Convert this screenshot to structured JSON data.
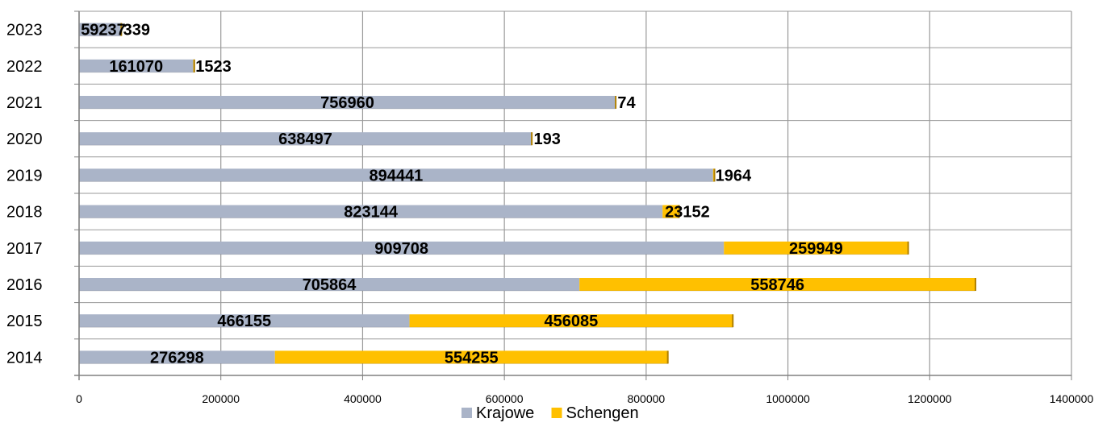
{
  "chart_data": {
    "type": "bar",
    "orientation": "horizontal",
    "stacked": true,
    "categories": [
      "2014",
      "2015",
      "2016",
      "2017",
      "2018",
      "2019",
      "2020",
      "2021",
      "2022",
      "2023"
    ],
    "series": [
      {
        "name": "Krajowe",
        "color": "#AAB4C8",
        "values": [
          276298,
          466155,
          705864,
          909708,
          823144,
          894441,
          638497,
          756960,
          161070,
          59237
        ]
      },
      {
        "name": "Schengen",
        "color": "#FFC000",
        "values": [
          554255,
          456085,
          558746,
          259949,
          23152,
          1964,
          193,
          74,
          1523,
          339
        ]
      }
    ],
    "xlim": [
      0,
      1400000
    ],
    "x_ticks": [
      "0",
      "200000",
      "400000",
      "600000",
      "800000",
      "1000000",
      "1200000",
      "1400000"
    ],
    "grid": true,
    "legend_position": "bottom",
    "title": "",
    "xlabel": "",
    "ylabel": ""
  }
}
